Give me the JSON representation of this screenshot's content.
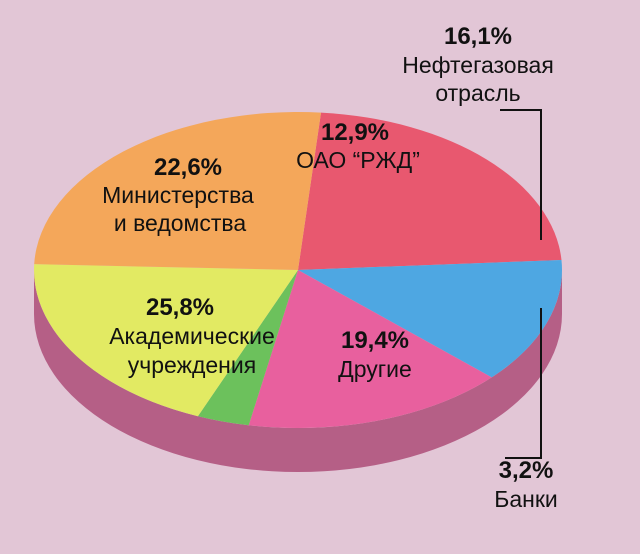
{
  "chart_data": {
    "type": "pie",
    "style": "3d",
    "slices": [
      {
        "label_lines": [
          "Министерства",
          "и ведомства"
        ],
        "percent_text": "22,6%",
        "value": 22.6,
        "color": "#e8586f"
      },
      {
        "label_lines": [
          "ОАО “РЖД”"
        ],
        "percent_text": "12,9%",
        "value": 12.9,
        "color": "#4ea7e2"
      },
      {
        "label_lines": [
          "Нефтегазовая",
          "отрасль"
        ],
        "percent_text": "16,1%",
        "value": 16.1,
        "color": "#e8609e"
      },
      {
        "label_lines": [
          "Банки"
        ],
        "percent_text": "3,2%",
        "value": 3.2,
        "color": "#6cc15c"
      },
      {
        "label_lines": [
          "Другие"
        ],
        "percent_text": "19,4%",
        "value": 19.4,
        "color": "#e2ea63"
      },
      {
        "label_lines": [
          "Академические",
          "учреждения"
        ],
        "percent_text": "25,8%",
        "value": 25.8,
        "color": "#f4a75a"
      }
    ],
    "side_color": "#b55f86",
    "background": "#e2c6d6"
  }
}
